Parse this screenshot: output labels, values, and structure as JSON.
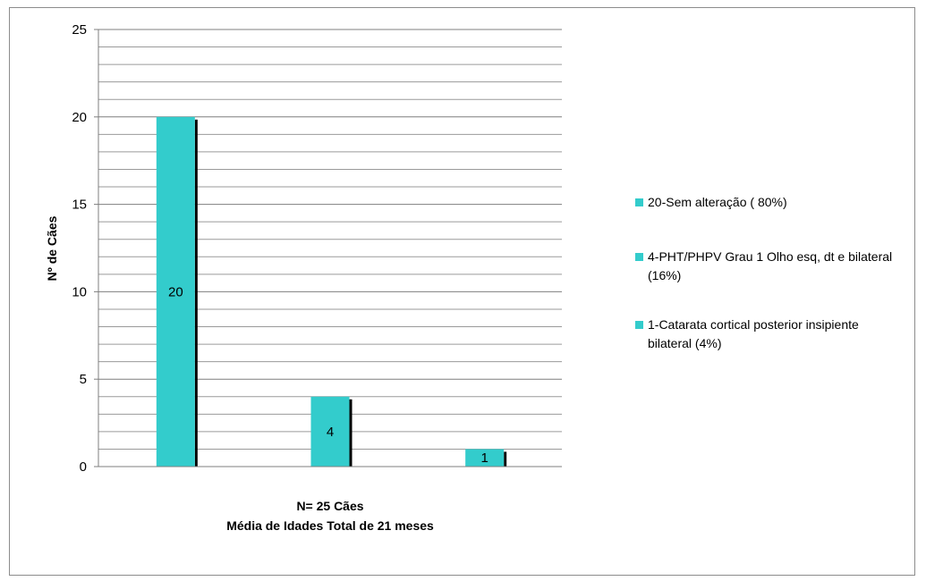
{
  "chart_data": {
    "type": "bar",
    "title": "",
    "ylabel": "Nº de Cães",
    "xlabel": [
      "N= 25 Cães",
      "Média de Idades Total de 21 meses"
    ],
    "ylim": [
      0,
      25
    ],
    "yticks": [
      0,
      5,
      10,
      15,
      20,
      25
    ],
    "minor_gridline_step": 1,
    "grid": true,
    "legend_position": "right",
    "bar_color": "#33cccc",
    "shadow_color": "#000000",
    "series": [
      {
        "name": "20-Sem alteração ( 80%)",
        "value": 20,
        "label": "20"
      },
      {
        "name": "4-PHT/PHPV Grau 1 Olho esq, dt e bilateral (16%)",
        "value": 4,
        "label": "4"
      },
      {
        "name": "1-Catarata cortical posterior insipiente bilateral (4%)",
        "value": 1,
        "label": "1"
      }
    ]
  }
}
